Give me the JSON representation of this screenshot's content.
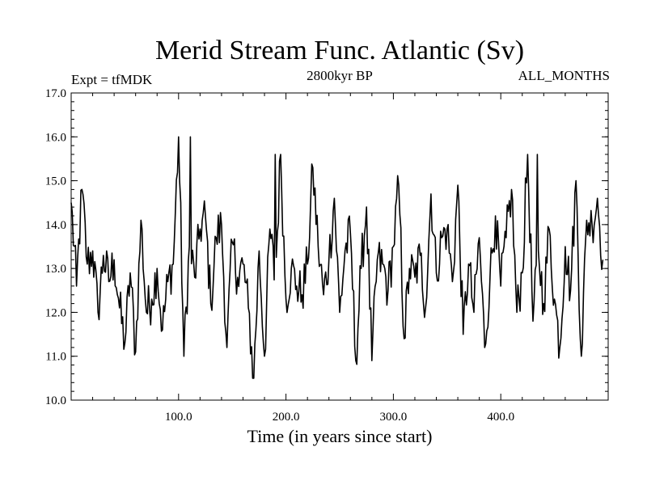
{
  "chart_data": {
    "type": "line",
    "title": "Merid Stream Func. Atlantic (Sv)",
    "subtitle_left": "Expt = tfMDK",
    "subtitle_center": "2800kyr BP",
    "subtitle_right": "ALL_MONTHS",
    "xlabel": "Time (in years since start)",
    "ylabel": "",
    "xlim": [
      0,
      500
    ],
    "ylim": [
      10.0,
      17.0
    ],
    "xticks": [
      100,
      200,
      300,
      400
    ],
    "xtick_labels": [
      "100.0",
      "200.0",
      "300.0",
      "400.0"
    ],
    "yticks": [
      10,
      11,
      12,
      13,
      14,
      15,
      16,
      17
    ],
    "ytick_labels": [
      "10.0",
      "11.0",
      "12.0",
      "13.0",
      "14.0",
      "15.0",
      "16.0",
      "17.0"
    ],
    "grid": false,
    "series": [
      {
        "name": "Merid Stream Func. Atlantic",
        "color": "#000000",
        "x_start": 0,
        "x_step": 5,
        "values": [
          14.5,
          12.6,
          14.8,
          13.1,
          13.4,
          12.0,
          13.3,
          12.7,
          13.2,
          12.1,
          11.3,
          12.9,
          11.1,
          14.1,
          12.0,
          12.3,
          13.0,
          11.6,
          12.7,
          13.1,
          16.0,
          11.0,
          13.5,
          12.8,
          13.9,
          14.2,
          12.2,
          13.7,
          14.0,
          11.2,
          13.6,
          12.8,
          13.1,
          12.1,
          10.5,
          13.4,
          11.0,
          13.9,
          12.7,
          15.6,
          12.3,
          13.0,
          12.6,
          12.4,
          13.1,
          15.3,
          13.5,
          12.4,
          13.2,
          14.6,
          12.0,
          13.4,
          13.8,
          10.9,
          13.0,
          14.4,
          10.9,
          13.2,
          13.1,
          12.5,
          13.5,
          14.9,
          11.4,
          13.0,
          12.8,
          13.3,
          12.1,
          14.7,
          12.9,
          13.7,
          13.9,
          12.7,
          14.9,
          11.5,
          13.1,
          12.0,
          13.7,
          11.2,
          12.8,
          14.2,
          12.6,
          13.7,
          14.8,
          12.0,
          12.9,
          15.6,
          11.8,
          13.4,
          12.2,
          13.9,
          12.3,
          11.2,
          13.5,
          12.5,
          15.0,
          11.0,
          14.1,
          14.0,
          14.6,
          13.2
        ]
      }
    ],
    "peaks": [
      {
        "x": 111,
        "y": 16.0
      },
      {
        "x": 169,
        "y": 10.5
      },
      {
        "x": 190,
        "y": 15.6
      },
      {
        "x": 434,
        "y": 15.6
      }
    ]
  }
}
